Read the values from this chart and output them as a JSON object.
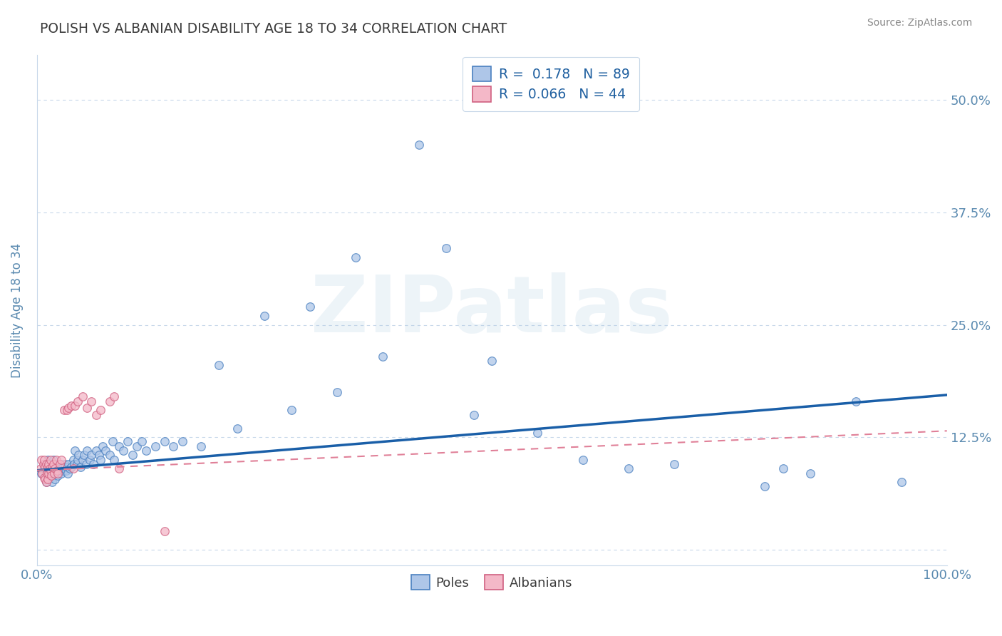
{
  "title": "POLISH VS ALBANIAN DISABILITY AGE 18 TO 34 CORRELATION CHART",
  "source": "Source: ZipAtlas.com",
  "ylabel": "Disability Age 18 to 34",
  "xlim": [
    0,
    1.0
  ],
  "ylim": [
    -0.018,
    0.55
  ],
  "ytick_positions": [
    0.0,
    0.125,
    0.25,
    0.375,
    0.5
  ],
  "ytick_labels": [
    "",
    "12.5%",
    "25.0%",
    "37.5%",
    "50.0%"
  ],
  "poles_R": 0.178,
  "poles_N": 89,
  "albanians_R": 0.066,
  "albanians_N": 44,
  "poles_color": "#aec6e8",
  "poles_edge_color": "#4a80c0",
  "albanians_color": "#f4b8c8",
  "albanians_edge_color": "#d06080",
  "poles_line_color": "#1a5fa8",
  "albanians_line_color": "#e08098",
  "background_color": "#ffffff",
  "grid_color": "#c8d8ea",
  "title_color": "#3a3a3a",
  "axis_label_color": "#5a8ab0",
  "tick_label_color": "#5a8ab0",
  "legend_text_color": "#2060a0",
  "watermark": "ZIPatlas",
  "poles_line_x0": 0.0,
  "poles_line_y0": 0.088,
  "poles_line_x1": 1.0,
  "poles_line_y1": 0.172,
  "alb_line_x0": 0.0,
  "alb_line_y0": 0.088,
  "alb_line_x1": 1.0,
  "alb_line_y1": 0.132,
  "poles_x": [
    0.005,
    0.008,
    0.01,
    0.01,
    0.012,
    0.012,
    0.015,
    0.015,
    0.016,
    0.016,
    0.017,
    0.018,
    0.018,
    0.019,
    0.02,
    0.02,
    0.021,
    0.022,
    0.022,
    0.023,
    0.024,
    0.025,
    0.026,
    0.027,
    0.028,
    0.029,
    0.03,
    0.031,
    0.032,
    0.033,
    0.034,
    0.035,
    0.036,
    0.038,
    0.04,
    0.041,
    0.042,
    0.044,
    0.045,
    0.046,
    0.048,
    0.05,
    0.052,
    0.054,
    0.055,
    0.058,
    0.06,
    0.062,
    0.065,
    0.068,
    0.07,
    0.072,
    0.075,
    0.08,
    0.083,
    0.085,
    0.09,
    0.095,
    0.1,
    0.105,
    0.11,
    0.115,
    0.12,
    0.13,
    0.14,
    0.15,
    0.16,
    0.18,
    0.2,
    0.22,
    0.25,
    0.28,
    0.3,
    0.33,
    0.35,
    0.38,
    0.42,
    0.45,
    0.48,
    0.5,
    0.55,
    0.6,
    0.65,
    0.7,
    0.8,
    0.82,
    0.85,
    0.9,
    0.95
  ],
  "poles_y": [
    0.085,
    0.09,
    0.075,
    0.095,
    0.08,
    0.1,
    0.085,
    0.09,
    0.08,
    0.095,
    0.075,
    0.09,
    0.1,
    0.085,
    0.078,
    0.092,
    0.085,
    0.09,
    0.095,
    0.082,
    0.088,
    0.09,
    0.095,
    0.085,
    0.092,
    0.088,
    0.09,
    0.095,
    0.088,
    0.092,
    0.085,
    0.095,
    0.09,
    0.092,
    0.1,
    0.095,
    0.11,
    0.095,
    0.1,
    0.105,
    0.092,
    0.1,
    0.105,
    0.095,
    0.11,
    0.1,
    0.105,
    0.095,
    0.11,
    0.105,
    0.1,
    0.115,
    0.11,
    0.105,
    0.12,
    0.1,
    0.115,
    0.11,
    0.12,
    0.105,
    0.115,
    0.12,
    0.11,
    0.115,
    0.12,
    0.115,
    0.12,
    0.115,
    0.205,
    0.135,
    0.26,
    0.155,
    0.27,
    0.175,
    0.325,
    0.215,
    0.45,
    0.335,
    0.15,
    0.21,
    0.13,
    0.1,
    0.09,
    0.095,
    0.07,
    0.09,
    0.085,
    0.165,
    0.075
  ],
  "albanians_x": [
    0.004,
    0.005,
    0.006,
    0.007,
    0.008,
    0.008,
    0.009,
    0.009,
    0.01,
    0.01,
    0.011,
    0.012,
    0.012,
    0.013,
    0.013,
    0.014,
    0.015,
    0.015,
    0.016,
    0.017,
    0.018,
    0.019,
    0.02,
    0.021,
    0.022,
    0.023,
    0.025,
    0.027,
    0.03,
    0.033,
    0.035,
    0.038,
    0.04,
    0.042,
    0.045,
    0.05,
    0.055,
    0.06,
    0.065,
    0.07,
    0.08,
    0.085,
    0.09,
    0.14
  ],
  "albanians_y": [
    0.09,
    0.1,
    0.085,
    0.095,
    0.08,
    0.1,
    0.078,
    0.092,
    0.075,
    0.095,
    0.085,
    0.078,
    0.092,
    0.085,
    0.095,
    0.09,
    0.088,
    0.1,
    0.082,
    0.092,
    0.095,
    0.085,
    0.09,
    0.1,
    0.088,
    0.085,
    0.095,
    0.1,
    0.155,
    0.155,
    0.158,
    0.16,
    0.09,
    0.16,
    0.165,
    0.17,
    0.158,
    0.165,
    0.15,
    0.155,
    0.165,
    0.17,
    0.09,
    0.02
  ]
}
